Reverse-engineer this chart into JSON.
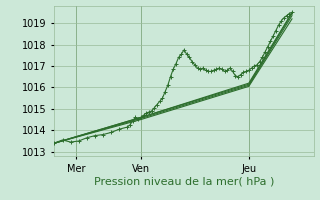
{
  "background_color": "#cce8d8",
  "grid_color": "#99bb99",
  "line_color": "#2d6e2d",
  "xlabel": "Pression niveau de la mer( hPa )",
  "xlabel_fontsize": 8,
  "tick_fontsize": 7,
  "ylim": [
    1012.8,
    1019.8
  ],
  "xlim": [
    0,
    96
  ],
  "yticks": [
    1013,
    1014,
    1015,
    1016,
    1017,
    1018,
    1019
  ],
  "xtick_positions": [
    8,
    32,
    72
  ],
  "xtick_labels": [
    "Mer",
    "Ven",
    "Jeu"
  ],
  "vline_positions": [
    8,
    32,
    72
  ],
  "series_main": [
    0,
    1013.4,
    3,
    1013.55,
    6,
    1013.45,
    9,
    1013.5,
    12,
    1013.65,
    15,
    1013.75,
    18,
    1013.8,
    21,
    1013.9,
    24,
    1014.05,
    27,
    1014.15,
    28,
    1014.25,
    29,
    1014.45,
    30,
    1014.6,
    31,
    1014.55,
    32,
    1014.6,
    33,
    1014.7,
    34,
    1014.8,
    35,
    1014.85,
    36,
    1014.9,
    37,
    1015.05,
    38,
    1015.2,
    39,
    1015.35,
    40,
    1015.5,
    41,
    1015.8,
    42,
    1016.1,
    43,
    1016.5,
    44,
    1016.85,
    45,
    1017.1,
    46,
    1017.4,
    47,
    1017.55,
    48,
    1017.75,
    49,
    1017.55,
    50,
    1017.4,
    51,
    1017.2,
    52,
    1017.05,
    53,
    1016.9,
    54,
    1016.85,
    55,
    1016.9,
    56,
    1016.8,
    57,
    1016.75,
    58,
    1016.75,
    59,
    1016.8,
    60,
    1016.85,
    61,
    1016.9,
    62,
    1016.85,
    63,
    1016.75,
    64,
    1016.8,
    65,
    1016.9,
    66,
    1016.75,
    67,
    1016.55,
    68,
    1016.5,
    69,
    1016.6,
    70,
    1016.7,
    71,
    1016.75,
    72,
    1016.8,
    73,
    1016.9,
    74,
    1017.0,
    75,
    1017.05,
    76,
    1017.2,
    77,
    1017.4,
    78,
    1017.65,
    79,
    1017.9,
    80,
    1018.15,
    81,
    1018.4,
    82,
    1018.65,
    83,
    1018.9,
    84,
    1019.1,
    85,
    1019.25,
    86,
    1019.35,
    87,
    1019.45,
    88,
    1019.5
  ],
  "series_smooth": [
    [
      0,
      1013.4,
      32,
      1014.6,
      72,
      1016.15,
      88,
      1019.45
    ],
    [
      0,
      1013.4,
      32,
      1014.55,
      72,
      1016.1,
      88,
      1019.35
    ],
    [
      0,
      1013.4,
      32,
      1014.5,
      72,
      1016.05,
      88,
      1019.2
    ],
    [
      0,
      1013.4,
      32,
      1014.6,
      72,
      1016.2,
      88,
      1019.5
    ]
  ]
}
